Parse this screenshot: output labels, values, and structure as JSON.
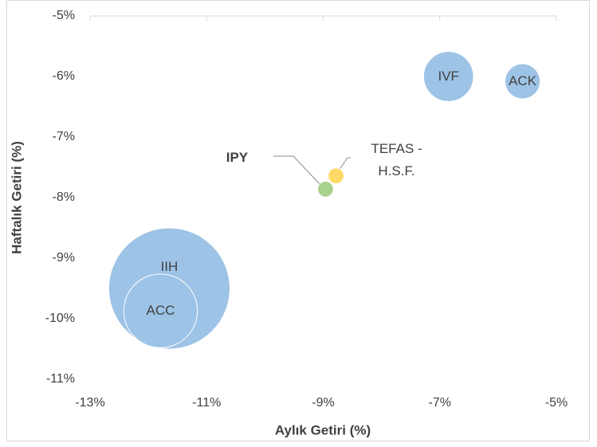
{
  "chart_data": {
    "type": "bubble",
    "x_label": "Aylık Getiri (%)",
    "y_label": "Haftalık Getiri (%)",
    "xlim": [
      -13,
      -5
    ],
    "xticks": [
      {
        "value": -13,
        "label": "-13%"
      },
      {
        "value": -11,
        "label": "-11%"
      },
      {
        "value": -9,
        "label": "-9%"
      },
      {
        "value": -7,
        "label": "-7%"
      },
      {
        "value": -5,
        "label": "-5%"
      }
    ],
    "ylim": [
      -11,
      -5
    ],
    "yticks": [
      {
        "value": -5,
        "label": "-5%"
      },
      {
        "value": -6,
        "label": "-6%"
      },
      {
        "value": -7,
        "label": "-7%"
      },
      {
        "value": -8,
        "label": "-8%"
      },
      {
        "value": -9,
        "label": "-9%"
      },
      {
        "value": -10,
        "label": "-10%"
      },
      {
        "value": -11,
        "label": "-11%"
      }
    ],
    "series": [
      {
        "name": "IIH",
        "color": "#9dc3e6",
        "x": [
          -11.64
        ],
        "values": [
          -9.5
        ],
        "sizes": [
          100
        ]
      },
      {
        "name": "ACC",
        "color": "#9dc3e6",
        "x": [
          -11.79
        ],
        "values": [
          -9.87
        ],
        "sizes": [
          37
        ]
      },
      {
        "name": "IVF",
        "color": "#9dc3e6",
        "x": [
          -6.85
        ],
        "values": [
          -6.0
        ],
        "sizes": [
          17
        ]
      },
      {
        "name": "ACK",
        "color": "#9dc3e6",
        "x": [
          -5.58
        ],
        "values": [
          -6.08
        ],
        "sizes": [
          8.4
        ]
      },
      {
        "name": "IPY",
        "color": "#a9d18e",
        "x": [
          -8.96
        ],
        "values": [
          -7.86
        ],
        "sizes": [
          1.7
        ]
      },
      {
        "name": "TEFAS - H.S.F.",
        "color": "#ffd966",
        "x": [
          -8.78
        ],
        "values": [
          -7.64
        ],
        "sizes": [
          1.7
        ]
      }
    ]
  }
}
